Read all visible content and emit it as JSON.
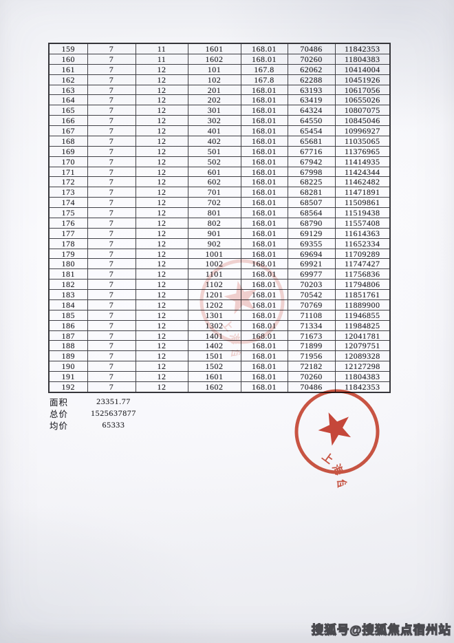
{
  "table": {
    "rows": [
      [
        "159",
        "7",
        "11",
        "1601",
        "168.01",
        "70486",
        "11842353"
      ],
      [
        "160",
        "7",
        "11",
        "1602",
        "168.01",
        "70260",
        "11804383"
      ],
      [
        "161",
        "7",
        "12",
        "101",
        "167.8",
        "62062",
        "10414004"
      ],
      [
        "162",
        "7",
        "12",
        "102",
        "167.8",
        "62288",
        "10451926"
      ],
      [
        "163",
        "7",
        "12",
        "201",
        "168.01",
        "63193",
        "10617056"
      ],
      [
        "164",
        "7",
        "12",
        "202",
        "168.01",
        "63419",
        "10655026"
      ],
      [
        "165",
        "7",
        "12",
        "301",
        "168.01",
        "64324",
        "10807075"
      ],
      [
        "166",
        "7",
        "12",
        "302",
        "168.01",
        "64550",
        "10845046"
      ],
      [
        "167",
        "7",
        "12",
        "401",
        "168.01",
        "65454",
        "10996927"
      ],
      [
        "168",
        "7",
        "12",
        "402",
        "168.01",
        "65681",
        "11035065"
      ],
      [
        "169",
        "7",
        "12",
        "501",
        "168.01",
        "67716",
        "11376965"
      ],
      [
        "170",
        "7",
        "12",
        "502",
        "168.01",
        "67942",
        "11414935"
      ],
      [
        "171",
        "7",
        "12",
        "601",
        "168.01",
        "67998",
        "11424344"
      ],
      [
        "172",
        "7",
        "12",
        "602",
        "168.01",
        "68225",
        "11462482"
      ],
      [
        "173",
        "7",
        "12",
        "701",
        "168.01",
        "68281",
        "11471891"
      ],
      [
        "174",
        "7",
        "12",
        "702",
        "168.01",
        "68507",
        "11509861"
      ],
      [
        "175",
        "7",
        "12",
        "801",
        "168.01",
        "68564",
        "11519438"
      ],
      [
        "176",
        "7",
        "12",
        "802",
        "168.01",
        "68790",
        "11557408"
      ],
      [
        "177",
        "7",
        "12",
        "901",
        "168.01",
        "69129",
        "11614363"
      ],
      [
        "178",
        "7",
        "12",
        "902",
        "168.01",
        "69355",
        "11652334"
      ],
      [
        "179",
        "7",
        "12",
        "1001",
        "168.01",
        "69694",
        "11709289"
      ],
      [
        "180",
        "7",
        "12",
        "1002",
        "168.01",
        "69921",
        "11747427"
      ],
      [
        "181",
        "7",
        "12",
        "1101",
        "168.01",
        "69977",
        "11756836"
      ],
      [
        "182",
        "7",
        "12",
        "1102",
        "168.01",
        "70203",
        "11794806"
      ],
      [
        "183",
        "7",
        "12",
        "1201",
        "168.01",
        "70542",
        "11851761"
      ],
      [
        "184",
        "7",
        "12",
        "1202",
        "168.01",
        "70769",
        "11889900"
      ],
      [
        "185",
        "7",
        "12",
        "1301",
        "168.01",
        "71108",
        "11946855"
      ],
      [
        "186",
        "7",
        "12",
        "1302",
        "168.01",
        "71334",
        "11984825"
      ],
      [
        "187",
        "7",
        "12",
        "1401",
        "168.01",
        "71673",
        "12041781"
      ],
      [
        "188",
        "7",
        "12",
        "1402",
        "168.01",
        "71899",
        "12079751"
      ],
      [
        "189",
        "7",
        "12",
        "1501",
        "168.01",
        "71956",
        "12089328"
      ],
      [
        "190",
        "7",
        "12",
        "1502",
        "168.01",
        "72182",
        "12127298"
      ],
      [
        "191",
        "7",
        "12",
        "1601",
        "168.01",
        "70260",
        "11804383"
      ],
      [
        "192",
        "7",
        "12",
        "1602",
        "168.01",
        "70486",
        "11842353"
      ]
    ]
  },
  "summary": {
    "items": [
      {
        "label": "面积",
        "value": "23351.77"
      },
      {
        "label": "总价",
        "value": "1525637877"
      },
      {
        "label": "均价",
        "value": "65333"
      }
    ]
  },
  "stamp": {
    "company_name": "上海佳川置业有限公司",
    "color": "#c9402a"
  },
  "watermark": {
    "text": "搜狐号@搜狐焦点宿州站"
  },
  "colors": {
    "seal_red": "#c9402a",
    "ink": "#232327",
    "table_border": "#3f3f45",
    "watermark_fill": "#fbfbfd",
    "watermark_outline": "#4c4c50"
  }
}
